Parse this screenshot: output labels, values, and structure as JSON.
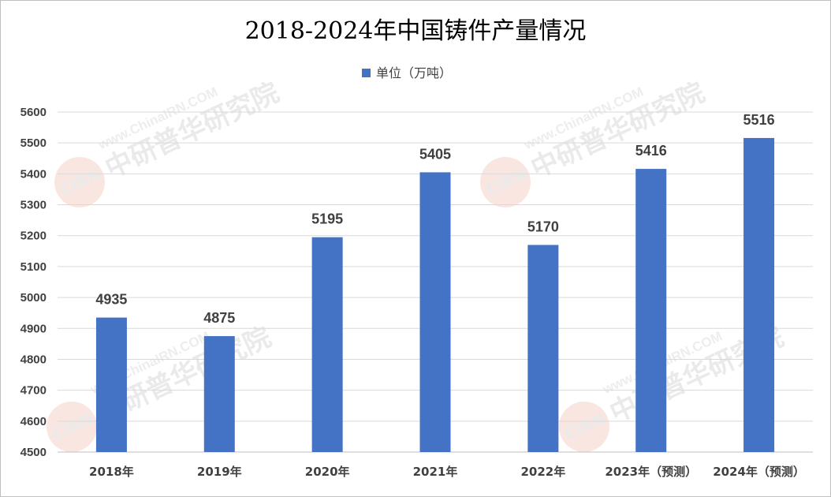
{
  "chart_data": {
    "type": "bar",
    "title": "2018-2024年中国铸件产量情况",
    "categories": [
      "2018年",
      "2019年",
      "2020年",
      "2021年",
      "2022年",
      "2023年（预测）",
      "2024年（预测）"
    ],
    "series": [
      {
        "name": "单位（万吨）",
        "values": [
          4935,
          4875,
          5195,
          5405,
          5170,
          5416,
          5516
        ],
        "color": "#4472c4"
      }
    ],
    "ylim": [
      4500,
      5600
    ],
    "yticks": [
      4500,
      4600,
      4700,
      4800,
      4900,
      5000,
      5100,
      5200,
      5300,
      5400,
      5500,
      5600
    ],
    "grid": true,
    "legend": "top-center",
    "data_labels": true
  },
  "watermark": {
    "logo": "CIRN",
    "name": "中研普华研究院",
    "url": "www.ChinaIRN.COM"
  }
}
